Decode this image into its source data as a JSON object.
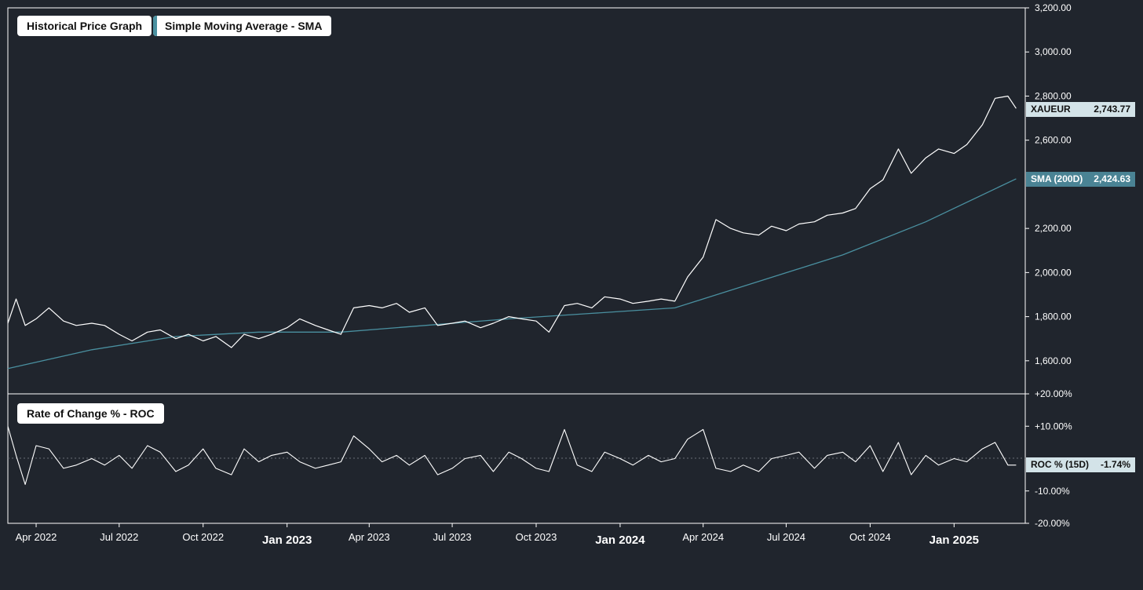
{
  "legend": {
    "price_label": "Historical Price Graph",
    "sma_label": "Simple Moving Average - SMA",
    "roc_label": "Rate of Change % - ROC"
  },
  "colors": {
    "background": "#20252d",
    "price_line": "#ffffff",
    "sma_line": "#4a90a0",
    "sma_tag": "#4a8394",
    "price_tag": "#d3e3e8",
    "roc_tag": "#d3e3e8"
  },
  "price_axis_ticks": [
    "3,200.00",
    "3,000.00",
    "2,800.00",
    "2,600.00",
    "2,200.00",
    "2,000.00",
    "1,800.00",
    "1,600.00"
  ],
  "roc_axis_ticks": [
    "+20.00%",
    "+10.00%",
    "-10.00%",
    "-20.00%"
  ],
  "x_ticks": [
    {
      "label": "Apr 2022",
      "major": false
    },
    {
      "label": "Jul 2022",
      "major": false
    },
    {
      "label": "Oct 2022",
      "major": false
    },
    {
      "label": "Jan 2023",
      "major": true
    },
    {
      "label": "Apr 2023",
      "major": false
    },
    {
      "label": "Jul 2023",
      "major": false
    },
    {
      "label": "Oct 2023",
      "major": false
    },
    {
      "label": "Jan 2024",
      "major": true
    },
    {
      "label": "Apr 2024",
      "major": false
    },
    {
      "label": "Jul 2024",
      "major": false
    },
    {
      "label": "Oct 2024",
      "major": false
    },
    {
      "label": "Jan 2025",
      "major": true
    }
  ],
  "tags": {
    "price_name": "XAUEUR",
    "price_value": "2,743.77",
    "sma_name": "SMA (200D)",
    "sma_value": "2,424.63",
    "roc_name": "ROC % (15D)",
    "roc_value": "-1.74%"
  },
  "chart_data": [
    {
      "type": "line",
      "ylim": [
        1450,
        3200
      ],
      "xlim": [
        "2022-03-01",
        "2025-03-20"
      ],
      "series": [
        {
          "name": "XAUEUR",
          "x": [
            "2022-03-01",
            "2022-03-10",
            "2022-03-20",
            "2022-04-01",
            "2022-04-15",
            "2022-05-01",
            "2022-05-15",
            "2022-06-01",
            "2022-06-15",
            "2022-07-01",
            "2022-07-15",
            "2022-08-01",
            "2022-08-15",
            "2022-09-01",
            "2022-09-15",
            "2022-10-01",
            "2022-10-15",
            "2022-11-01",
            "2022-11-15",
            "2022-12-01",
            "2022-12-15",
            "2023-01-01",
            "2023-01-15",
            "2023-02-01",
            "2023-02-15",
            "2023-03-01",
            "2023-03-15",
            "2023-04-01",
            "2023-04-15",
            "2023-05-01",
            "2023-05-15",
            "2023-06-01",
            "2023-06-15",
            "2023-07-01",
            "2023-07-15",
            "2023-08-01",
            "2023-08-15",
            "2023-09-01",
            "2023-09-15",
            "2023-10-01",
            "2023-10-15",
            "2023-11-01",
            "2023-11-15",
            "2023-12-01",
            "2023-12-15",
            "2024-01-01",
            "2024-01-15",
            "2024-02-01",
            "2024-02-15",
            "2024-03-01",
            "2024-03-15",
            "2024-04-01",
            "2024-04-15",
            "2024-05-01",
            "2024-05-15",
            "2024-06-01",
            "2024-06-15",
            "2024-07-01",
            "2024-07-15",
            "2024-08-01",
            "2024-08-15",
            "2024-09-01",
            "2024-09-15",
            "2024-10-01",
            "2024-10-15",
            "2024-11-01",
            "2024-11-15",
            "2024-12-01",
            "2024-12-15",
            "2025-01-01",
            "2025-01-15",
            "2025-02-01",
            "2025-02-15",
            "2025-03-01",
            "2025-03-10"
          ],
          "values": [
            1770,
            1880,
            1760,
            1790,
            1840,
            1780,
            1760,
            1770,
            1760,
            1720,
            1690,
            1730,
            1740,
            1700,
            1720,
            1690,
            1710,
            1660,
            1720,
            1700,
            1720,
            1750,
            1790,
            1760,
            1740,
            1720,
            1840,
            1850,
            1840,
            1860,
            1820,
            1840,
            1760,
            1770,
            1780,
            1750,
            1770,
            1800,
            1790,
            1780,
            1730,
            1850,
            1860,
            1840,
            1890,
            1880,
            1860,
            1870,
            1880,
            1870,
            1980,
            2070,
            2240,
            2200,
            2180,
            2170,
            2210,
            2190,
            2220,
            2230,
            2260,
            2270,
            2290,
            2380,
            2420,
            2560,
            2450,
            2520,
            2560,
            2540,
            2580,
            2670,
            2790,
            2800,
            2744
          ]
        },
        {
          "name": "SMA (200D)",
          "x": [
            "2022-03-01",
            "2022-06-01",
            "2022-09-01",
            "2022-12-01",
            "2023-03-01",
            "2023-06-01",
            "2023-09-01",
            "2023-12-01",
            "2024-03-01",
            "2024-06-01",
            "2024-09-01",
            "2024-12-01",
            "2025-03-10"
          ],
          "values": [
            1565,
            1650,
            1710,
            1730,
            1730,
            1760,
            1790,
            1815,
            1840,
            1960,
            2080,
            2230,
            2425
          ]
        }
      ]
    },
    {
      "type": "line",
      "ylim": [
        -20,
        20
      ],
      "series": [
        {
          "name": "ROC % (15D)",
          "x": [
            "2022-03-01",
            "2022-03-10",
            "2022-03-20",
            "2022-04-01",
            "2022-04-15",
            "2022-05-01",
            "2022-05-15",
            "2022-06-01",
            "2022-06-15",
            "2022-07-01",
            "2022-07-15",
            "2022-08-01",
            "2022-08-15",
            "2022-09-01",
            "2022-09-15",
            "2022-10-01",
            "2022-10-15",
            "2022-11-01",
            "2022-11-15",
            "2022-12-01",
            "2022-12-15",
            "2023-01-01",
            "2023-01-15",
            "2023-02-01",
            "2023-02-15",
            "2023-03-01",
            "2023-03-15",
            "2023-04-01",
            "2023-04-15",
            "2023-05-01",
            "2023-05-15",
            "2023-06-01",
            "2023-06-15",
            "2023-07-01",
            "2023-07-15",
            "2023-08-01",
            "2023-08-15",
            "2023-09-01",
            "2023-09-15",
            "2023-10-01",
            "2023-10-15",
            "2023-11-01",
            "2023-11-15",
            "2023-12-01",
            "2023-12-15",
            "2024-01-01",
            "2024-01-15",
            "2024-02-01",
            "2024-02-15",
            "2024-03-01",
            "2024-03-15",
            "2024-04-01",
            "2024-04-15",
            "2024-05-01",
            "2024-05-15",
            "2024-06-01",
            "2024-06-15",
            "2024-07-01",
            "2024-07-15",
            "2024-08-01",
            "2024-08-15",
            "2024-09-01",
            "2024-09-15",
            "2024-10-01",
            "2024-10-15",
            "2024-11-01",
            "2024-11-15",
            "2024-12-01",
            "2024-12-15",
            "2025-01-01",
            "2025-01-15",
            "2025-02-01",
            "2025-02-15",
            "2025-03-01",
            "2025-03-10"
          ],
          "values": [
            10,
            1,
            -8,
            4,
            3,
            -3,
            -2,
            0,
            -2,
            1,
            -3,
            4,
            2,
            -4,
            -2,
            3,
            -3,
            -5,
            3,
            -1,
            1,
            2,
            -1,
            -3,
            -2,
            -1,
            7,
            3,
            -1,
            1,
            -2,
            1,
            -5,
            -3,
            0,
            1,
            -4,
            2,
            0,
            -3,
            -4,
            9,
            -2,
            -4,
            2,
            0,
            -2,
            1,
            -1,
            0,
            6,
            9,
            -3,
            -4,
            -2,
            -4,
            0,
            1,
            2,
            -3,
            1,
            2,
            -1,
            4,
            -4,
            5,
            -5,
            1,
            -2,
            0,
            -1,
            3,
            5,
            -2,
            -2
          ]
        }
      ]
    }
  ]
}
